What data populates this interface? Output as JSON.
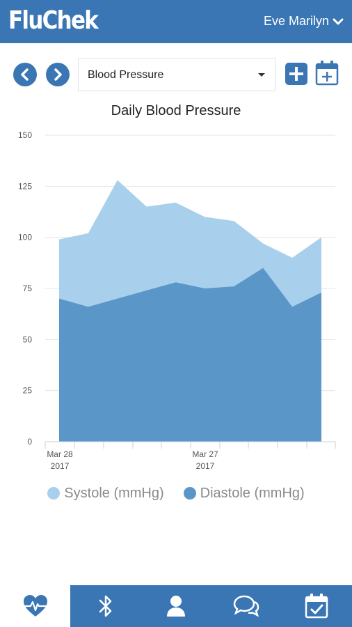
{
  "app": {
    "logo": "FluChek",
    "user_name": "Eve Marilyn"
  },
  "toolbar": {
    "selected_metric": "Blood Pressure"
  },
  "colors": {
    "brand": "#3a76b4",
    "systole": "#a8d0ec",
    "diastole": "#5b96c8"
  },
  "icons": {
    "prev": "chevron-left-icon",
    "next": "chevron-right-icon",
    "add": "plus-square-icon",
    "calendar_add": "calendar-plus-icon",
    "tabs": [
      "heart-pulse-icon",
      "bluetooth-icon",
      "user-icon",
      "chat-icon",
      "calendar-check-icon"
    ]
  },
  "chart_data": {
    "type": "area",
    "title": "Daily Blood Pressure",
    "x_tick_labels": [
      {
        "line1": "Mar 28",
        "line2": "2017"
      },
      {
        "line1": "Mar 27",
        "line2": "2017"
      }
    ],
    "ylim": [
      0,
      150
    ],
    "y_ticks": [
      0,
      25,
      50,
      75,
      100,
      125,
      150
    ],
    "grid": true,
    "legend_position": "bottom",
    "series": [
      {
        "name": "Systole (mmHg)",
        "values": [
          99,
          102,
          128,
          115,
          117,
          110,
          108,
          97,
          90,
          100
        ]
      },
      {
        "name": "Diastole (mmHg)",
        "values": [
          70,
          66,
          70,
          74,
          78,
          75,
          76,
          85,
          66,
          73
        ]
      }
    ]
  }
}
